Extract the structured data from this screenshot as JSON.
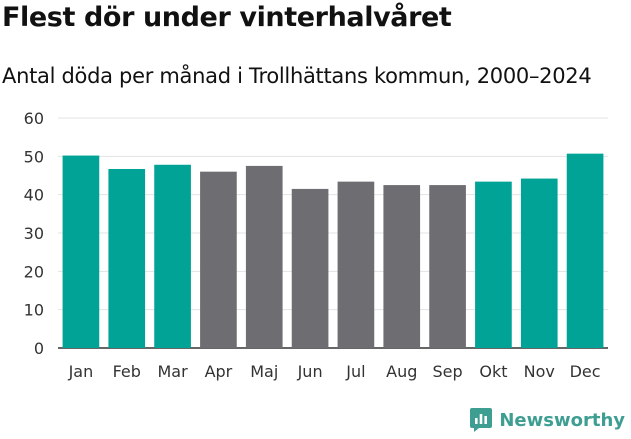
{
  "header": {
    "title": "Flest dör under vinterhalvåret",
    "subtitle": "Antal döda per månad i Trollhättans kommun, 2000–2024"
  },
  "chart_data": {
    "type": "bar",
    "title": "Flest dör under vinterhalvåret",
    "subtitle": "Antal döda per månad i Trollhättans kommun, 2000–2024",
    "xlabel": "",
    "ylabel": "",
    "categories": [
      "Jan",
      "Feb",
      "Mar",
      "Apr",
      "Maj",
      "Jun",
      "Jul",
      "Aug",
      "Sep",
      "Okt",
      "Nov",
      "Dec"
    ],
    "values": [
      50.2,
      46.7,
      47.8,
      46.0,
      47.5,
      41.5,
      43.4,
      42.5,
      42.5,
      43.4,
      44.2,
      50.7
    ],
    "ylim": [
      0,
      60
    ],
    "yticks": [
      0,
      10,
      20,
      30,
      40,
      50,
      60
    ],
    "grid": true,
    "colors": {
      "winter": "#00a396",
      "summer": "#6e6d72"
    },
    "bar_groups": [
      "winter",
      "winter",
      "winter",
      "summer",
      "summer",
      "summer",
      "summer",
      "summer",
      "summer",
      "winter",
      "winter",
      "winter"
    ]
  },
  "brand": {
    "name": "Newsworthy",
    "icon": "newsworthy-logo-icon",
    "color": "#3e9e92"
  }
}
